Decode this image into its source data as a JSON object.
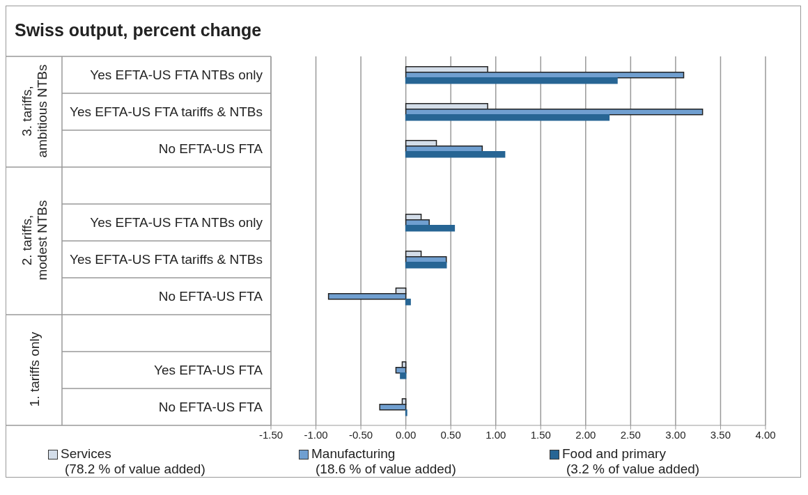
{
  "chart_data": {
    "type": "bar",
    "orientation": "horizontal",
    "title": "Swiss output, percent change",
    "categories": [
      "Yes EFTA-US FTA NTBs only",
      "Yes EFTA-US FTA tariffs & NTBs",
      "No EFTA-US FTA",
      null,
      "Yes EFTA-US FTA NTBs only",
      "Yes EFTA-US FTA tariffs & NTBs",
      "No EFTA-US FTA",
      null,
      "Yes EFTA-US FTA",
      "No EFTA-US FTA"
    ],
    "series": [
      {
        "name": "Services\n(78.2 % of value added)",
        "color": "#d3dde9",
        "values": [
          0.91,
          0.91,
          0.34,
          null,
          0.17,
          0.17,
          -0.11,
          null,
          -0.04,
          -0.04
        ]
      },
      {
        "name": "Manufacturing\n(18.6 % of value added)",
        "color": "#709fd0",
        "values": [
          3.09,
          3.3,
          0.85,
          null,
          0.26,
          0.45,
          -0.86,
          null,
          -0.11,
          -0.29
        ]
      },
      {
        "name": "Food and primary\n(3.2 % of value added)",
        "color": "#276594",
        "values": [
          2.35,
          2.26,
          1.1,
          null,
          0.54,
          0.45,
          0.05,
          null,
          -0.06,
          0.01
        ]
      }
    ],
    "annotations": [
      "3. tariffs, ambitious NTBs",
      "2. tariffs, modest NTBs",
      "1. tariffs only"
    ],
    "xlim": [
      -1.5,
      4
    ],
    "xticks": [
      {
        "value": -1.5,
        "label": "-1.50"
      },
      {
        "value": -1,
        "label": "-1.00"
      },
      {
        "value": -0.5,
        "label": "-0.50"
      },
      {
        "value": 0,
        "label": "0.00"
      },
      {
        "value": 0.5,
        "label": "0.50"
      },
      {
        "value": 1,
        "label": "1.00"
      },
      {
        "value": 1.5,
        "label": "1.50"
      },
      {
        "value": 2,
        "label": "2.00"
      },
      {
        "value": 2.5,
        "label": "2.50"
      },
      {
        "value": 3,
        "label": "3.00"
      },
      {
        "value": 3.5,
        "label": "3.50"
      },
      {
        "value": 4,
        "label": "4.00"
      }
    ],
    "grid": "x",
    "legend": "bottom"
  }
}
